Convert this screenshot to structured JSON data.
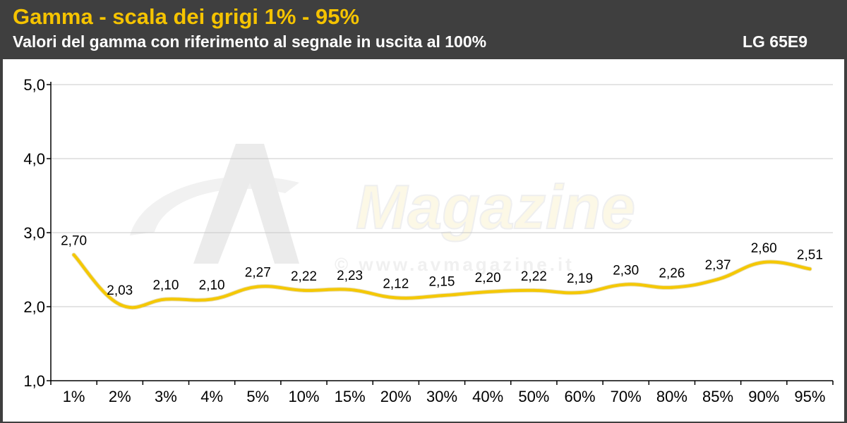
{
  "header": {
    "title": "Gamma - scala dei grigi 1% - 95%",
    "subtitle": "Valori del gamma con riferimento al segnale in uscita al 100%",
    "model": "LG 65E9"
  },
  "watermark": {
    "brand": "Magazine",
    "url": "© www.avmagazine.it"
  },
  "colors": {
    "header_bg": "#3f3f3f",
    "title": "#f5c300",
    "series": "#f5c800",
    "grid": "#c8c8c8"
  },
  "chart_data": {
    "type": "line",
    "title": "Gamma - scala dei grigi 1% - 95%",
    "subtitle": "Valori del gamma con riferimento al segnale in uscita al 100%",
    "xlabel": "",
    "ylabel": "",
    "ylim": [
      1.0,
      5.0
    ],
    "yticks": [
      "1,0",
      "2,0",
      "3,0",
      "4,0",
      "5,0"
    ],
    "grid": true,
    "categories": [
      "1%",
      "2%",
      "3%",
      "4%",
      "5%",
      "10%",
      "15%",
      "20%",
      "30%",
      "40%",
      "50%",
      "60%",
      "70%",
      "80%",
      "85%",
      "90%",
      "95%"
    ],
    "series": [
      {
        "values": [
          2.7,
          2.03,
          2.1,
          2.1,
          2.27,
          2.22,
          2.23,
          2.12,
          2.15,
          2.2,
          2.22,
          2.19,
          2.3,
          2.26,
          2.37,
          2.6,
          2.51
        ],
        "labels": [
          "2,70",
          "2,03",
          "2,10",
          "2,10",
          "2,27",
          "2,22",
          "2,23",
          "2,12",
          "2,15",
          "2,20",
          "2,22",
          "2,19",
          "2,30",
          "2,26",
          "2,37",
          "2,60",
          "2,51"
        ]
      }
    ]
  }
}
